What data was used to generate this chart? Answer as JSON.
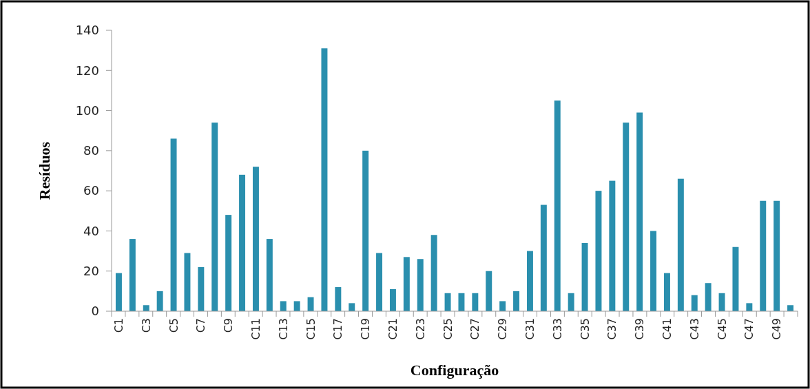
{
  "chart_data": {
    "type": "bar",
    "xlabel": "Configuração",
    "ylabel": "Resíduos",
    "categories": [
      "C1",
      null,
      "C3",
      null,
      "C5",
      null,
      "C7",
      null,
      "C9",
      null,
      "C11",
      null,
      "C13",
      null,
      "C15",
      null,
      "C17",
      null,
      "C19",
      null,
      "C21",
      null,
      "C23",
      null,
      "C25",
      null,
      "C27",
      null,
      "C29",
      null,
      "C31",
      null,
      "C33",
      null,
      "C35",
      null,
      "C37",
      null,
      "C39",
      null,
      "C41",
      null,
      "C43",
      null,
      "C45",
      null,
      "C47",
      null,
      "C49",
      null
    ],
    "values": [
      19,
      36,
      3,
      10,
      86,
      29,
      22,
      94,
      48,
      68,
      72,
      36,
      5,
      5,
      7,
      131,
      12,
      4,
      80,
      29,
      11,
      27,
      26,
      38,
      9,
      9,
      9,
      20,
      5,
      10,
      30,
      53,
      105,
      9,
      34,
      60,
      65,
      94,
      99,
      40,
      19,
      66,
      8,
      14,
      9,
      32,
      4,
      55,
      55,
      3
    ],
    "color": "#2a8fae",
    "ylim": [
      0,
      140
    ],
    "yticks": [
      0,
      20,
      40,
      60,
      80,
      100,
      120,
      140
    ],
    "grid": false
  }
}
